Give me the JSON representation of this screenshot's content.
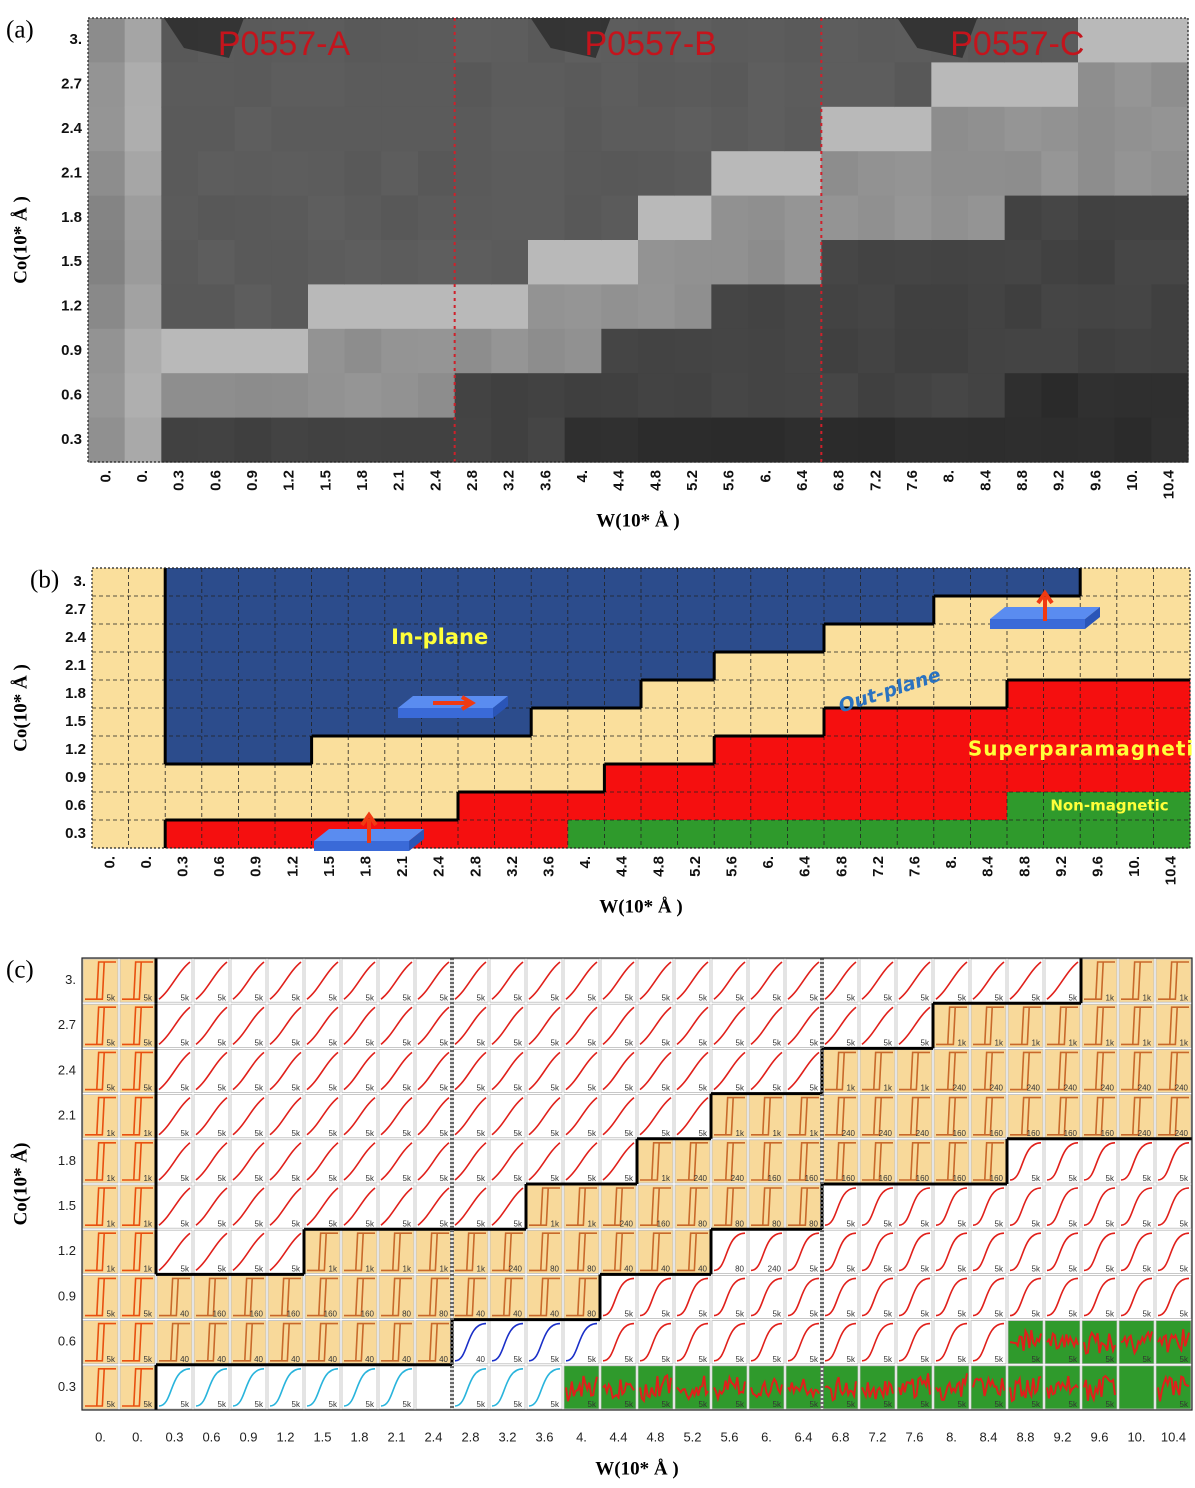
{
  "panels": [
    {
      "label": "(a)",
      "y_axis_title": "Co(10* Å )",
      "x_axis_title": "W(10* Å )",
      "y_ticks": [
        "3.",
        "2.7",
        "2.4",
        "2.1",
        "1.8",
        "1.5",
        "1.2",
        "0.9",
        "0.6",
        "0.3"
      ],
      "x_ticks": [
        "0.",
        "0.",
        "0.3",
        "0.6",
        "0.9",
        "1.2",
        "1.5",
        "1.8",
        "2.1",
        "2.4",
        "2.8",
        "3.2",
        "3.6",
        "4.",
        "4.4",
        "4.8",
        "5.2",
        "5.6",
        "6.",
        "6.4",
        "6.8",
        "7.2",
        "7.6",
        "8.",
        "8.4",
        "8.8",
        "9.2",
        "9.6",
        "10.",
        "10.4"
      ],
      "annotations": [
        "P0557-A",
        "P0557-B",
        "P0557-C"
      ]
    },
    {
      "label": "(b)",
      "y_axis_title": "Co(10* Å )",
      "x_axis_title": "W(10* Å )",
      "y_ticks": [
        "3.",
        "2.7",
        "2.4",
        "2.1",
        "1.8",
        "1.5",
        "1.2",
        "0.9",
        "0.6",
        "0.3"
      ],
      "x_ticks": [
        "0.",
        "0.",
        "0.3",
        "0.6",
        "0.9",
        "1.2",
        "1.5",
        "1.8",
        "2.1",
        "2.4",
        "2.8",
        "3.2",
        "3.6",
        "4.",
        "4.4",
        "4.8",
        "5.2",
        "5.6",
        "6.",
        "6.4",
        "6.8",
        "7.2",
        "7.6",
        "8.",
        "8.4",
        "8.8",
        "9.2",
        "9.6",
        "10.",
        "10.4"
      ],
      "annotations": [
        "In-plane",
        "Out-plane",
        "Superparamagnetic",
        "Non-magnetic"
      ]
    },
    {
      "label": "(c)",
      "y_axis_title": "Co(10* Å)",
      "x_axis_title": "W(10* Å )",
      "y_ticks": [
        "3.",
        "2.7",
        "2.4",
        "2.1",
        "1.8",
        "1.5",
        "1.2",
        "0.9",
        "0.6",
        "0.3"
      ],
      "x_ticks": [
        "0.",
        "0.",
        "0.3",
        "0.6",
        "0.9",
        "1.2",
        "1.5",
        "1.8",
        "2.1",
        "2.4",
        "2.8",
        "3.2",
        "3.6",
        "4.",
        "4.4",
        "4.8",
        "5.2",
        "5.6",
        "6.",
        "6.4",
        "6.8",
        "7.2",
        "7.6",
        "8.",
        "8.4",
        "8.8",
        "9.2",
        "9.6",
        "10.",
        "10.4"
      ],
      "loop_labels": [
        [
          "5k",
          "5k",
          "5k",
          "5k",
          "5k",
          "5k",
          "5k",
          "5k",
          "5k",
          "5k",
          "5k",
          "5k",
          "5k",
          "5k",
          "5k",
          "5k",
          "5k",
          "5k",
          "5k",
          "5k",
          "5k",
          "5k",
          "5k",
          "5k",
          "5k",
          "5k",
          "5k",
          "1k",
          "1k",
          "1k"
        ],
        [
          "5k",
          "5k",
          "5k",
          "5k",
          "5k",
          "5k",
          "5k",
          "5k",
          "5k",
          "5k",
          "5k",
          "5k",
          "5k",
          "5k",
          "5k",
          "5k",
          "5k",
          "5k",
          "5k",
          "5k",
          "5k",
          "5k",
          "5k",
          "1k",
          "1k",
          "1k",
          "1k",
          "1k",
          "1k",
          "1k"
        ],
        [
          "5k",
          "5k",
          "5k",
          "5k",
          "5k",
          "5k",
          "5k",
          "5k",
          "5k",
          "5k",
          "5k",
          "5k",
          "5k",
          "5k",
          "5k",
          "5k",
          "5k",
          "5k",
          "5k",
          "5k",
          "1k",
          "1k",
          "1k",
          "240",
          "240",
          "240",
          "240",
          "240",
          "240",
          "240"
        ],
        [
          "1k",
          "1k",
          "5k",
          "5k",
          "5k",
          "5k",
          "5k",
          "5k",
          "5k",
          "5k",
          "5k",
          "5k",
          "5k",
          "5k",
          "5k",
          "5k",
          "5k",
          "1k",
          "1k",
          "1k",
          "240",
          "240",
          "240",
          "160",
          "160",
          "160",
          "160",
          "160",
          "240",
          "240"
        ],
        [
          "1k",
          "1k",
          "5k",
          "5k",
          "5k",
          "5k",
          "5k",
          "5k",
          "5k",
          "5k",
          "5k",
          "5k",
          "5k",
          "5k",
          "5k",
          "1k",
          "240",
          "240",
          "160",
          "160",
          "160",
          "160",
          "160",
          "160",
          "160",
          "5k",
          "5k",
          "5k",
          "5k",
          "5k"
        ],
        [
          "1k",
          "1k",
          "5k",
          "5k",
          "5k",
          "5k",
          "5k",
          "5k",
          "5k",
          "5k",
          "5k",
          "5k",
          "1k",
          "1k",
          "240",
          "160",
          "80",
          "80",
          "80",
          "80",
          "5k",
          "5k",
          "5k",
          "5k",
          "5k",
          "5k",
          "5k",
          "5k",
          "5k",
          "5k"
        ],
        [
          "1k",
          "1k",
          "5k",
          "5k",
          "5k",
          "5k",
          "1k",
          "1k",
          "1k",
          "1k",
          "1k",
          "240",
          "80",
          "80",
          "40",
          "40",
          "40",
          "80",
          "240",
          "5k",
          "5k",
          "5k",
          "5k",
          "5k",
          "5k",
          "5k",
          "5k",
          "5k",
          "5k",
          "5k"
        ],
        [
          "5k",
          "5k",
          "40",
          "160",
          "160",
          "160",
          "160",
          "160",
          "80",
          "80",
          "40",
          "40",
          "40",
          "80",
          "5k",
          "5k",
          "5k",
          "5k",
          "5k",
          "5k",
          "5k",
          "5k",
          "5k",
          "5k",
          "5k",
          "5k",
          "5k",
          "5k",
          "5k",
          "5k"
        ],
        [
          "5k",
          "5k",
          "40",
          "40",
          "40",
          "40",
          "40",
          "40",
          "40",
          "40",
          "40",
          "5k",
          "5k",
          "5k",
          "5k",
          "5k",
          "5k",
          "5k",
          "5k",
          "5k",
          "5k",
          "5k",
          "5k",
          "5k",
          "5k",
          "5k",
          "5k",
          "5k",
          "5k",
          "5k"
        ],
        [
          "5k",
          "5k",
          "5k",
          "5k",
          "5k",
          "5k",
          "5k",
          "5k",
          "5k",
          null,
          "5k",
          "5k",
          "5k",
          "5k",
          "5k",
          "5k",
          "5k",
          "5k",
          "5k",
          "5k",
          "5k",
          "5k",
          "5k",
          "5k",
          "5k",
          "5k",
          "5k",
          "5k",
          null,
          "5k"
        ]
      ]
    }
  ]
}
